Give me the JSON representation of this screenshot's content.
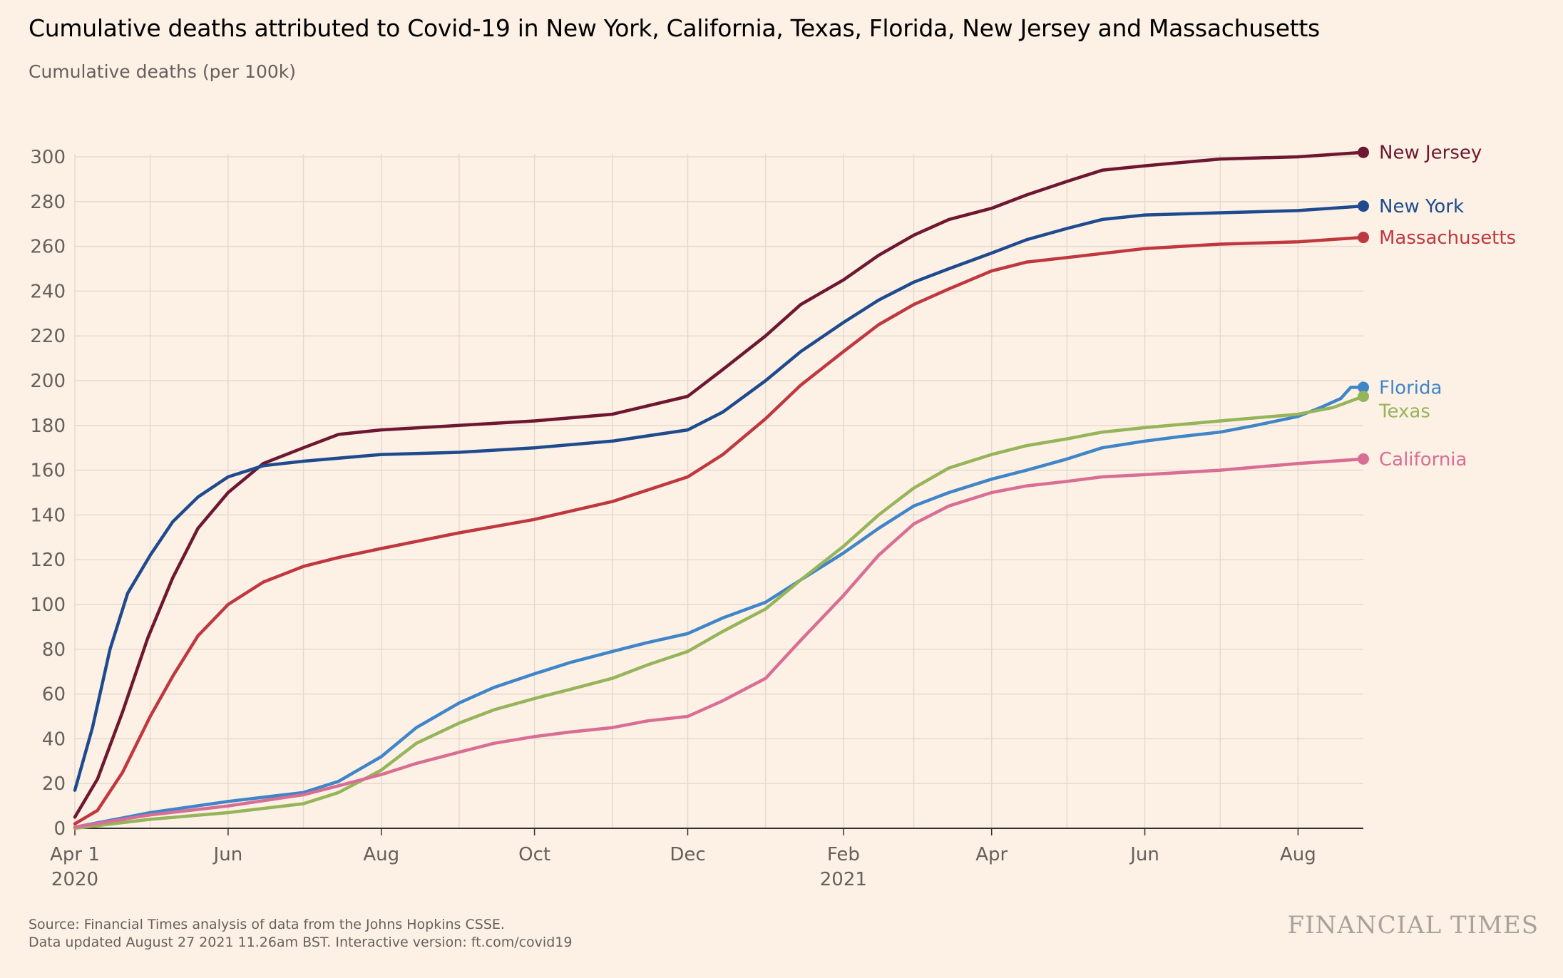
{
  "title": "Cumulative deaths attributed to Covid-19 in New York, California, Texas, Florida, New Jersey and Massachusetts",
  "subtitle": "Cumulative deaths (per 100k)",
  "source_line1": "Source: Financial Times analysis of data from the Johns Hopkins CSSE.",
  "source_line2": "Data updated August 27 2021 11.26am BST. Interactive version: ft.com/covid19",
  "logo": "FINANCIAL TIMES",
  "colors": {
    "background": "#fdf1e6",
    "grid": "#e6d9ce",
    "axis": "#33302e"
  },
  "chart_data": {
    "type": "line",
    "ylabel": "Cumulative deaths (per 100k)",
    "ylim": [
      0,
      300
    ],
    "xlim": [
      "2020-04-01",
      "2021-08-27"
    ],
    "y_ticks": [
      0,
      20,
      40,
      60,
      80,
      100,
      120,
      140,
      160,
      180,
      200,
      220,
      240,
      260,
      280,
      300
    ],
    "x_ticks": [
      {
        "date": "2020-04-01",
        "label": "Apr 1",
        "sublabel": "2020"
      },
      {
        "date": "2020-06-01",
        "label": "Jun",
        "sublabel": ""
      },
      {
        "date": "2020-08-01",
        "label": "Aug",
        "sublabel": ""
      },
      {
        "date": "2020-10-01",
        "label": "Oct",
        "sublabel": ""
      },
      {
        "date": "2020-12-01",
        "label": "Dec",
        "sublabel": ""
      },
      {
        "date": "2021-02-01",
        "label": "Feb",
        "sublabel": "2021"
      },
      {
        "date": "2021-04-01",
        "label": "Apr",
        "sublabel": ""
      },
      {
        "date": "2021-06-01",
        "label": "Jun",
        "sublabel": ""
      },
      {
        "date": "2021-08-01",
        "label": "Aug",
        "sublabel": ""
      }
    ],
    "minor_gridlines": [
      "2020-05-01",
      "2020-07-01",
      "2020-09-01",
      "2020-11-01",
      "2021-01-01",
      "2021-03-01",
      "2021-05-01",
      "2021-07-01"
    ],
    "grid": true,
    "legend": "inline labels at line ends",
    "series": [
      {
        "name": "New Jersey",
        "color": "#6e1730",
        "points": [
          [
            "2020-04-01",
            5
          ],
          [
            "2020-04-10",
            22
          ],
          [
            "2020-04-20",
            52
          ],
          [
            "2020-04-30",
            85
          ],
          [
            "2020-05-10",
            112
          ],
          [
            "2020-05-20",
            134
          ],
          [
            "2020-06-01",
            150
          ],
          [
            "2020-06-15",
            163
          ],
          [
            "2020-07-01",
            170
          ],
          [
            "2020-07-15",
            176
          ],
          [
            "2020-08-01",
            178
          ],
          [
            "2020-09-01",
            180
          ],
          [
            "2020-10-01",
            182
          ],
          [
            "2020-11-01",
            185
          ],
          [
            "2020-12-01",
            193
          ],
          [
            "2020-12-15",
            205
          ],
          [
            "2021-01-01",
            220
          ],
          [
            "2021-01-15",
            234
          ],
          [
            "2021-02-01",
            245
          ],
          [
            "2021-02-15",
            256
          ],
          [
            "2021-03-01",
            265
          ],
          [
            "2021-03-15",
            272
          ],
          [
            "2021-04-01",
            277
          ],
          [
            "2021-04-15",
            283
          ],
          [
            "2021-05-01",
            289
          ],
          [
            "2021-05-15",
            294
          ],
          [
            "2021-06-01",
            296
          ],
          [
            "2021-07-01",
            299
          ],
          [
            "2021-08-01",
            300
          ],
          [
            "2021-08-27",
            302
          ]
        ]
      },
      {
        "name": "New York",
        "color": "#1f4b8e",
        "points": [
          [
            "2020-04-01",
            17
          ],
          [
            "2020-04-08",
            45
          ],
          [
            "2020-04-15",
            80
          ],
          [
            "2020-04-22",
            105
          ],
          [
            "2020-05-01",
            122
          ],
          [
            "2020-05-10",
            137
          ],
          [
            "2020-05-20",
            148
          ],
          [
            "2020-06-01",
            157
          ],
          [
            "2020-06-15",
            162
          ],
          [
            "2020-07-01",
            164
          ],
          [
            "2020-08-01",
            167
          ],
          [
            "2020-09-01",
            168
          ],
          [
            "2020-10-01",
            170
          ],
          [
            "2020-11-01",
            173
          ],
          [
            "2020-12-01",
            178
          ],
          [
            "2020-12-15",
            186
          ],
          [
            "2021-01-01",
            200
          ],
          [
            "2021-01-15",
            213
          ],
          [
            "2021-02-01",
            226
          ],
          [
            "2021-02-15",
            236
          ],
          [
            "2021-03-01",
            244
          ],
          [
            "2021-03-15",
            250
          ],
          [
            "2021-04-01",
            257
          ],
          [
            "2021-04-15",
            263
          ],
          [
            "2021-05-01",
            268
          ],
          [
            "2021-05-15",
            272
          ],
          [
            "2021-06-01",
            274
          ],
          [
            "2021-07-01",
            275
          ],
          [
            "2021-08-01",
            276
          ],
          [
            "2021-08-27",
            278
          ]
        ]
      },
      {
        "name": "Massachusetts",
        "color": "#c0383f",
        "points": [
          [
            "2020-04-01",
            2
          ],
          [
            "2020-04-10",
            8
          ],
          [
            "2020-04-20",
            25
          ],
          [
            "2020-05-01",
            50
          ],
          [
            "2020-05-10",
            68
          ],
          [
            "2020-05-20",
            86
          ],
          [
            "2020-06-01",
            100
          ],
          [
            "2020-06-15",
            110
          ],
          [
            "2020-07-01",
            117
          ],
          [
            "2020-07-15",
            121
          ],
          [
            "2020-08-01",
            125
          ],
          [
            "2020-09-01",
            132
          ],
          [
            "2020-10-01",
            138
          ],
          [
            "2020-11-01",
            146
          ],
          [
            "2020-12-01",
            157
          ],
          [
            "2020-12-15",
            167
          ],
          [
            "2021-01-01",
            183
          ],
          [
            "2021-01-15",
            198
          ],
          [
            "2021-02-01",
            213
          ],
          [
            "2021-02-15",
            225
          ],
          [
            "2021-03-01",
            234
          ],
          [
            "2021-03-15",
            241
          ],
          [
            "2021-04-01",
            249
          ],
          [
            "2021-04-15",
            253
          ],
          [
            "2021-05-01",
            255
          ],
          [
            "2021-06-01",
            259
          ],
          [
            "2021-07-01",
            261
          ],
          [
            "2021-08-01",
            262
          ],
          [
            "2021-08-27",
            264
          ]
        ]
      },
      {
        "name": "Florida",
        "color": "#3f85c7",
        "points": [
          [
            "2020-04-01",
            0.5
          ],
          [
            "2020-05-01",
            7
          ],
          [
            "2020-06-01",
            12
          ],
          [
            "2020-07-01",
            16
          ],
          [
            "2020-07-15",
            21
          ],
          [
            "2020-08-01",
            32
          ],
          [
            "2020-08-15",
            45
          ],
          [
            "2020-09-01",
            56
          ],
          [
            "2020-09-15",
            63
          ],
          [
            "2020-10-01",
            69
          ],
          [
            "2020-10-15",
            74
          ],
          [
            "2020-11-01",
            79
          ],
          [
            "2020-11-15",
            83
          ],
          [
            "2020-12-01",
            87
          ],
          [
            "2020-12-15",
            94
          ],
          [
            "2021-01-01",
            101
          ],
          [
            "2021-01-15",
            111
          ],
          [
            "2021-02-01",
            123
          ],
          [
            "2021-02-15",
            134
          ],
          [
            "2021-03-01",
            144
          ],
          [
            "2021-03-15",
            150
          ],
          [
            "2021-04-01",
            156
          ],
          [
            "2021-04-15",
            160
          ],
          [
            "2021-05-01",
            165
          ],
          [
            "2021-05-15",
            170
          ],
          [
            "2021-06-01",
            173
          ],
          [
            "2021-06-15",
            175
          ],
          [
            "2021-07-01",
            177
          ],
          [
            "2021-07-15",
            180
          ],
          [
            "2021-08-01",
            184
          ],
          [
            "2021-08-10",
            188
          ],
          [
            "2021-08-18",
            192
          ],
          [
            "2021-08-22",
            197
          ],
          [
            "2021-08-27",
            197
          ]
        ]
      },
      {
        "name": "Texas",
        "color": "#96b45a",
        "points": [
          [
            "2020-04-01",
            0
          ],
          [
            "2020-05-01",
            4
          ],
          [
            "2020-06-01",
            7
          ],
          [
            "2020-07-01",
            11
          ],
          [
            "2020-07-15",
            16
          ],
          [
            "2020-08-01",
            26
          ],
          [
            "2020-08-15",
            38
          ],
          [
            "2020-09-01",
            47
          ],
          [
            "2020-09-15",
            53
          ],
          [
            "2020-10-01",
            58
          ],
          [
            "2020-10-15",
            62
          ],
          [
            "2020-11-01",
            67
          ],
          [
            "2020-11-15",
            73
          ],
          [
            "2020-12-01",
            79
          ],
          [
            "2020-12-15",
            88
          ],
          [
            "2021-01-01",
            98
          ],
          [
            "2021-01-15",
            111
          ],
          [
            "2021-02-01",
            126
          ],
          [
            "2021-02-15",
            140
          ],
          [
            "2021-03-01",
            152
          ],
          [
            "2021-03-15",
            161
          ],
          [
            "2021-04-01",
            167
          ],
          [
            "2021-04-15",
            171
          ],
          [
            "2021-05-01",
            174
          ],
          [
            "2021-05-15",
            177
          ],
          [
            "2021-06-01",
            179
          ],
          [
            "2021-07-01",
            182
          ],
          [
            "2021-08-01",
            185
          ],
          [
            "2021-08-15",
            188
          ],
          [
            "2021-08-27",
            193
          ]
        ]
      },
      {
        "name": "California",
        "color": "#d96e95",
        "points": [
          [
            "2020-04-01",
            0.5
          ],
          [
            "2020-05-01",
            6
          ],
          [
            "2020-06-01",
            10
          ],
          [
            "2020-07-01",
            15
          ],
          [
            "2020-07-15",
            19
          ],
          [
            "2020-08-01",
            24
          ],
          [
            "2020-08-15",
            29
          ],
          [
            "2020-09-01",
            34
          ],
          [
            "2020-09-15",
            38
          ],
          [
            "2020-10-01",
            41
          ],
          [
            "2020-10-15",
            43
          ],
          [
            "2020-11-01",
            45
          ],
          [
            "2020-11-15",
            48
          ],
          [
            "2020-12-01",
            50
          ],
          [
            "2020-12-15",
            57
          ],
          [
            "2021-01-01",
            67
          ],
          [
            "2021-01-15",
            84
          ],
          [
            "2021-02-01",
            104
          ],
          [
            "2021-02-15",
            122
          ],
          [
            "2021-03-01",
            136
          ],
          [
            "2021-03-15",
            144
          ],
          [
            "2021-04-01",
            150
          ],
          [
            "2021-04-15",
            153
          ],
          [
            "2021-05-01",
            155
          ],
          [
            "2021-05-15",
            157
          ],
          [
            "2021-06-01",
            158
          ],
          [
            "2021-07-01",
            160
          ],
          [
            "2021-08-01",
            163
          ],
          [
            "2021-08-27",
            165
          ]
        ]
      }
    ]
  }
}
